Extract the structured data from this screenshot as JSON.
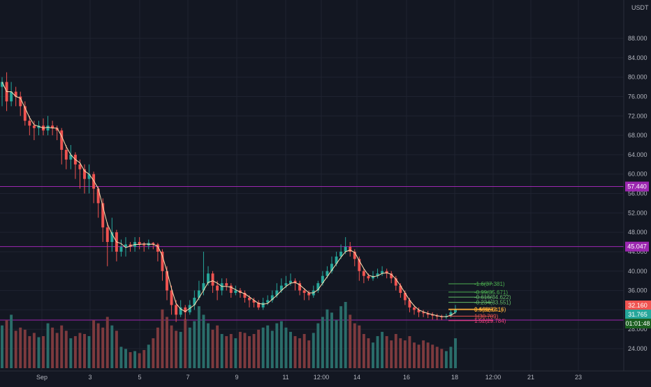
{
  "app": {
    "currency_label": "USDT"
  },
  "chart_data": {
    "type": "candlestick",
    "currency": "USDT",
    "y_ticks": [
      "88.000",
      "84.000",
      "80.000",
      "76.000",
      "72.000",
      "68.000",
      "64.000",
      "60.000",
      "56.000",
      "52.000",
      "48.000",
      "44.000",
      "40.000",
      "36.000",
      "32.000",
      "28.000",
      "24.000"
    ],
    "x_ticks": [
      "Sep",
      "3",
      "5",
      "7",
      "9",
      "11",
      "12:00",
      "14",
      "16",
      "18",
      "12:00",
      "21",
      "23"
    ],
    "ylim": [
      21.5,
      91.5
    ],
    "horizontal_levels": [
      {
        "value": 57.44,
        "label": "57.440",
        "color": "#9c27b0"
      },
      {
        "value": 45.047,
        "label": "45.047",
        "color": "#9c27b0"
      },
      {
        "value": 29.892,
        "label": "29.892",
        "color": "#9c27b0"
      }
    ],
    "price_labels": [
      {
        "value": 32.16,
        "label": "32.160",
        "color": "#ef5350"
      },
      {
        "value": 31.765,
        "label": "31.765",
        "color": "#26a69a"
      },
      {
        "value": 30.1,
        "label": "01:01:48",
        "color": "#1b5e20"
      }
    ],
    "fib_levels": [
      {
        "label": "-1.6(37.381)",
        "value": 37.381,
        "color": "#4caf50"
      },
      {
        "label": "-0.99(35.671)",
        "value": 35.671,
        "color": "#4caf50"
      },
      {
        "label": "-0.616(34.622)",
        "value": 34.622,
        "color": "#66bb6a"
      },
      {
        "label": "-0.234(33.551)",
        "value": 33.551,
        "color": "#66bb6a"
      },
      {
        "label": "0.466(32.16)",
        "value": 32.16,
        "color": "#ffb74d"
      },
      {
        "label": "0.5(32.041)",
        "value": 32.041,
        "color": "#ffa726"
      },
      {
        "label": "1(30.709)",
        "value": 30.709,
        "color": "#ef5350"
      },
      {
        "label": "1.52(29.784)",
        "value": 29.784,
        "color": "#ec407a"
      }
    ],
    "candles": [
      [
        78,
        79,
        80,
        74
      ],
      [
        79,
        75,
        81,
        73
      ],
      [
        75,
        77,
        79,
        74
      ],
      [
        77,
        76,
        78,
        74
      ],
      [
        76,
        74,
        77,
        72
      ],
      [
        74,
        71,
        75,
        70
      ],
      [
        71,
        70,
        72,
        68
      ],
      [
        70,
        69.5,
        71,
        67
      ],
      [
        69.5,
        70,
        71,
        68
      ],
      [
        70,
        69,
        71.5,
        68
      ],
      [
        69,
        70,
        72,
        68
      ],
      [
        70,
        69.5,
        71,
        68
      ],
      [
        69.5,
        69,
        70,
        67
      ],
      [
        69,
        65,
        69.5,
        62
      ],
      [
        65,
        63,
        66,
        61
      ],
      [
        63,
        64,
        66,
        61
      ],
      [
        64,
        62,
        64.5,
        59
      ],
      [
        62,
        61,
        63,
        57
      ],
      [
        61,
        59,
        62,
        56
      ],
      [
        59,
        60,
        62,
        56
      ],
      [
        60,
        57,
        60.5,
        54
      ],
      [
        57,
        54,
        57.5,
        51
      ],
      [
        54,
        49,
        55,
        46
      ],
      [
        49,
        46,
        50,
        41
      ],
      [
        46,
        48,
        51,
        44
      ],
      [
        48,
        44,
        48.5,
        42
      ],
      [
        44,
        45,
        46.5,
        43
      ],
      [
        45,
        45.5,
        47,
        43
      ],
      [
        45.5,
        45,
        46,
        44
      ],
      [
        45,
        46,
        47,
        44
      ],
      [
        46,
        45.5,
        47,
        44.5
      ],
      [
        45.5,
        45.3,
        46,
        44
      ],
      [
        45.3,
        45.8,
        46.5,
        44.5
      ],
      [
        45.8,
        45.5,
        46,
        44.5
      ],
      [
        45.5,
        44,
        45.8,
        42
      ],
      [
        44,
        40,
        44.5,
        38
      ],
      [
        40,
        36,
        41,
        34
      ],
      [
        36,
        33,
        37,
        31
      ],
      [
        33,
        31,
        34,
        29.5
      ],
      [
        31,
        32.5,
        34,
        30.5
      ],
      [
        32.5,
        31.5,
        33,
        30
      ],
      [
        31.5,
        33,
        34,
        31
      ],
      [
        33,
        34.5,
        36,
        32
      ],
      [
        34.5,
        36,
        38,
        34
      ],
      [
        36,
        37.5,
        44,
        35
      ],
      [
        37.5,
        39.5,
        41,
        37
      ],
      [
        39.5,
        37,
        40,
        35.5
      ],
      [
        37,
        36,
        38,
        34
      ],
      [
        36,
        37.5,
        38.5,
        35
      ],
      [
        37.5,
        37,
        38.5,
        36
      ],
      [
        37,
        35.5,
        37.5,
        34.5
      ],
      [
        35.5,
        36,
        37,
        35
      ],
      [
        36,
        35.5,
        36.5,
        34.5
      ],
      [
        35.5,
        34.5,
        36,
        33.5
      ],
      [
        34.5,
        34,
        35,
        32.5
      ],
      [
        34,
        33.5,
        34.5,
        32.5
      ],
      [
        33.5,
        32.5,
        34,
        32
      ],
      [
        32.5,
        33.5,
        34.5,
        32
      ],
      [
        33.5,
        34,
        35,
        33
      ],
      [
        34,
        35,
        36,
        33.5
      ],
      [
        35,
        36,
        37.5,
        34.5
      ],
      [
        36,
        37,
        38.5,
        35.5
      ],
      [
        37,
        37.5,
        39,
        36.5
      ],
      [
        37.5,
        38,
        39.5,
        37
      ],
      [
        38,
        37.5,
        38.5,
        36
      ],
      [
        37.5,
        36,
        38,
        35
      ],
      [
        36,
        35.5,
        36.5,
        34
      ],
      [
        35.5,
        35,
        36,
        34
      ],
      [
        35,
        36,
        37,
        34.5
      ],
      [
        36,
        37.5,
        38,
        35.5
      ],
      [
        37.5,
        39,
        40,
        37
      ],
      [
        39,
        40,
        41,
        38.5
      ],
      [
        40,
        41.5,
        43,
        39.5
      ],
      [
        41.5,
        43,
        44,
        41
      ],
      [
        43,
        44,
        45.5,
        42.5
      ],
      [
        44,
        45,
        47,
        43.5
      ],
      [
        45,
        44,
        46,
        43
      ],
      [
        44,
        42.5,
        44.5,
        41
      ],
      [
        42.5,
        40,
        43,
        38
      ],
      [
        40,
        39,
        40.5,
        37.5
      ],
      [
        39,
        38.5,
        39.5,
        38
      ],
      [
        38.5,
        39,
        40,
        38
      ],
      [
        39,
        39.5,
        40.5,
        38.5
      ],
      [
        39.5,
        40,
        41,
        39
      ],
      [
        40,
        39.5,
        40.5,
        38.5
      ],
      [
        39.5,
        38.5,
        40,
        37.5
      ],
      [
        38.5,
        37,
        39,
        36
      ],
      [
        37,
        35.5,
        37.5,
        34.5
      ],
      [
        35.5,
        34,
        36,
        33
      ],
      [
        34,
        32.5,
        34.5,
        31.5
      ],
      [
        32.5,
        32,
        33,
        31
      ],
      [
        32,
        31.5,
        32.5,
        30.5
      ],
      [
        31.5,
        31.3,
        32,
        30.5
      ],
      [
        31.3,
        31,
        31.8,
        30.3
      ],
      [
        31,
        30.8,
        31.5,
        30
      ],
      [
        30.8,
        30.6,
        31.2,
        29.9
      ],
      [
        30.6,
        30.5,
        31,
        29.9
      ],
      [
        30.5,
        30.7,
        31.2,
        30.1
      ],
      [
        30.7,
        31.5,
        32,
        30.4
      ],
      [
        31.5,
        32.16,
        33,
        31.2
      ]
    ],
    "volumes": [
      40,
      45,
      50,
      35,
      38,
      36,
      30,
      33,
      29,
      30,
      42,
      38,
      33,
      40,
      35,
      28,
      30,
      33,
      32,
      30,
      45,
      42,
      38,
      48,
      40,
      35,
      20,
      18,
      15,
      16,
      14,
      17,
      22,
      28,
      38,
      55,
      48,
      40,
      35,
      34,
      46,
      38,
      44,
      58,
      50,
      42,
      36,
      40,
      32,
      30,
      32,
      28,
      34,
      33,
      30,
      32,
      36,
      38,
      40,
      35,
      42,
      44,
      38,
      34,
      30,
      28,
      32,
      26,
      33,
      42,
      48,
      55,
      52,
      45,
      58,
      62,
      50,
      42,
      40,
      32,
      28,
      24,
      30,
      34,
      30,
      26,
      32,
      28,
      26,
      30,
      24,
      22,
      26,
      24,
      22,
      20,
      18,
      16,
      20,
      28
    ],
    "volume_up": [
      true,
      false,
      true,
      false,
      false,
      false,
      false,
      false,
      true,
      false,
      true,
      false,
      false,
      false,
      false,
      true,
      false,
      false,
      false,
      true,
      false,
      false,
      false,
      false,
      true,
      false,
      true,
      true,
      false,
      true,
      false,
      false,
      true,
      false,
      false,
      false,
      false,
      false,
      false,
      true,
      false,
      true,
      true,
      true,
      true,
      true,
      false,
      false,
      true,
      false,
      false,
      true,
      false,
      false,
      false,
      false,
      false,
      true,
      true,
      true,
      true,
      true,
      true,
      true,
      false,
      false,
      false,
      false,
      true,
      true,
      true,
      true,
      true,
      true,
      true,
      true,
      false,
      false,
      false,
      false,
      false,
      true,
      true,
      true,
      false,
      false,
      false,
      false,
      false,
      false,
      false,
      false,
      false,
      false,
      false,
      false,
      false,
      true,
      true,
      true
    ]
  }
}
